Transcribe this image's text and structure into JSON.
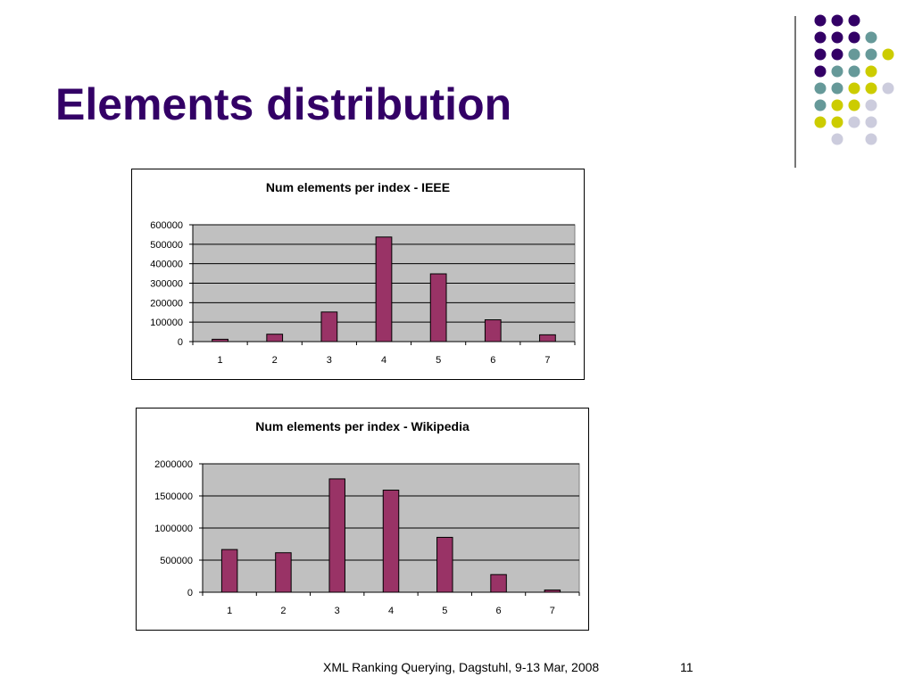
{
  "slide": {
    "title": "Elements distribution",
    "footer_text": "XML Ranking Querying, Dagstuhl, 9-13 Mar, 2008",
    "page_number": "11"
  },
  "colors": {
    "title": "#330066",
    "bar_fill": "#993366",
    "plot_background": "#c0c0c0",
    "dot_purple": "#330066",
    "dot_teal": "#669999",
    "dot_yellow": "#cccc00",
    "dot_lavender": "#ccccdd"
  },
  "decor": {
    "dot_grid": [
      [
        "purple",
        "purple",
        "purple",
        null,
        null
      ],
      [
        "purple",
        "purple",
        "purple",
        "teal",
        null
      ],
      [
        "purple",
        "purple",
        "teal",
        "teal",
        "yellow"
      ],
      [
        "purple",
        "teal",
        "teal",
        "yellow",
        null
      ],
      [
        "teal",
        "teal",
        "yellow",
        "yellow",
        "lavender"
      ],
      [
        "teal",
        "yellow",
        "yellow",
        "lavender",
        null
      ],
      [
        "yellow",
        "yellow",
        "lavender",
        "lavender",
        null
      ],
      [
        null,
        "lavender",
        null,
        "lavender",
        null
      ]
    ]
  },
  "chart_data": [
    {
      "type": "bar",
      "title": "Num elements per index - IEEE",
      "categories": [
        "1",
        "2",
        "3",
        "4",
        "5",
        "6",
        "7"
      ],
      "values": [
        12000,
        38000,
        152000,
        537000,
        348000,
        112000,
        35000
      ],
      "ylim": [
        0,
        600000
      ],
      "yticks": [
        "0",
        "100000",
        "200000",
        "300000",
        "400000",
        "500000",
        "600000"
      ],
      "grid": true,
      "legend": "none"
    },
    {
      "type": "bar",
      "title": "Num elements per index - Wikipedia",
      "categories": [
        "1",
        "2",
        "3",
        "4",
        "5",
        "6",
        "7"
      ],
      "values": [
        665000,
        615000,
        1765000,
        1590000,
        855000,
        275000,
        35000
      ],
      "ylim": [
        0,
        2000000
      ],
      "yticks": [
        "0",
        "500000",
        "1000000",
        "1500000",
        "2000000"
      ],
      "grid": true,
      "legend": "none"
    }
  ]
}
